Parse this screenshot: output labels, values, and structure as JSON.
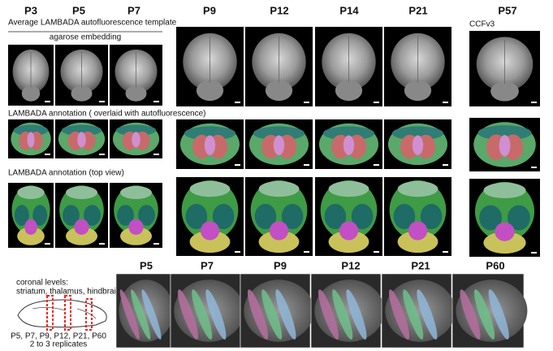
{
  "column_headers": [
    "P3",
    "P5",
    "P7",
    "P9",
    "P12",
    "P14",
    "P21",
    "P57"
  ],
  "labels": {
    "autofluorescence": "Average LAMBADA autofluorescence template",
    "agarose": "agarose embedding",
    "ccf": "CCFv3",
    "overlaid": "LAMBADA annotation ( overlaid with autofluorescence)",
    "top_view": "LAMBADA annotation (top view)"
  },
  "schematic": {
    "title": "coronal levels:",
    "levels": "striatum, thalamus, hindbrain",
    "ages": "P5, P7, P9, P12, P21, P60",
    "replicates": "2 to 3 replicates"
  },
  "bottom_headers": [
    "P5",
    "P7",
    "P9",
    "P12",
    "P21",
    "P60"
  ]
}
